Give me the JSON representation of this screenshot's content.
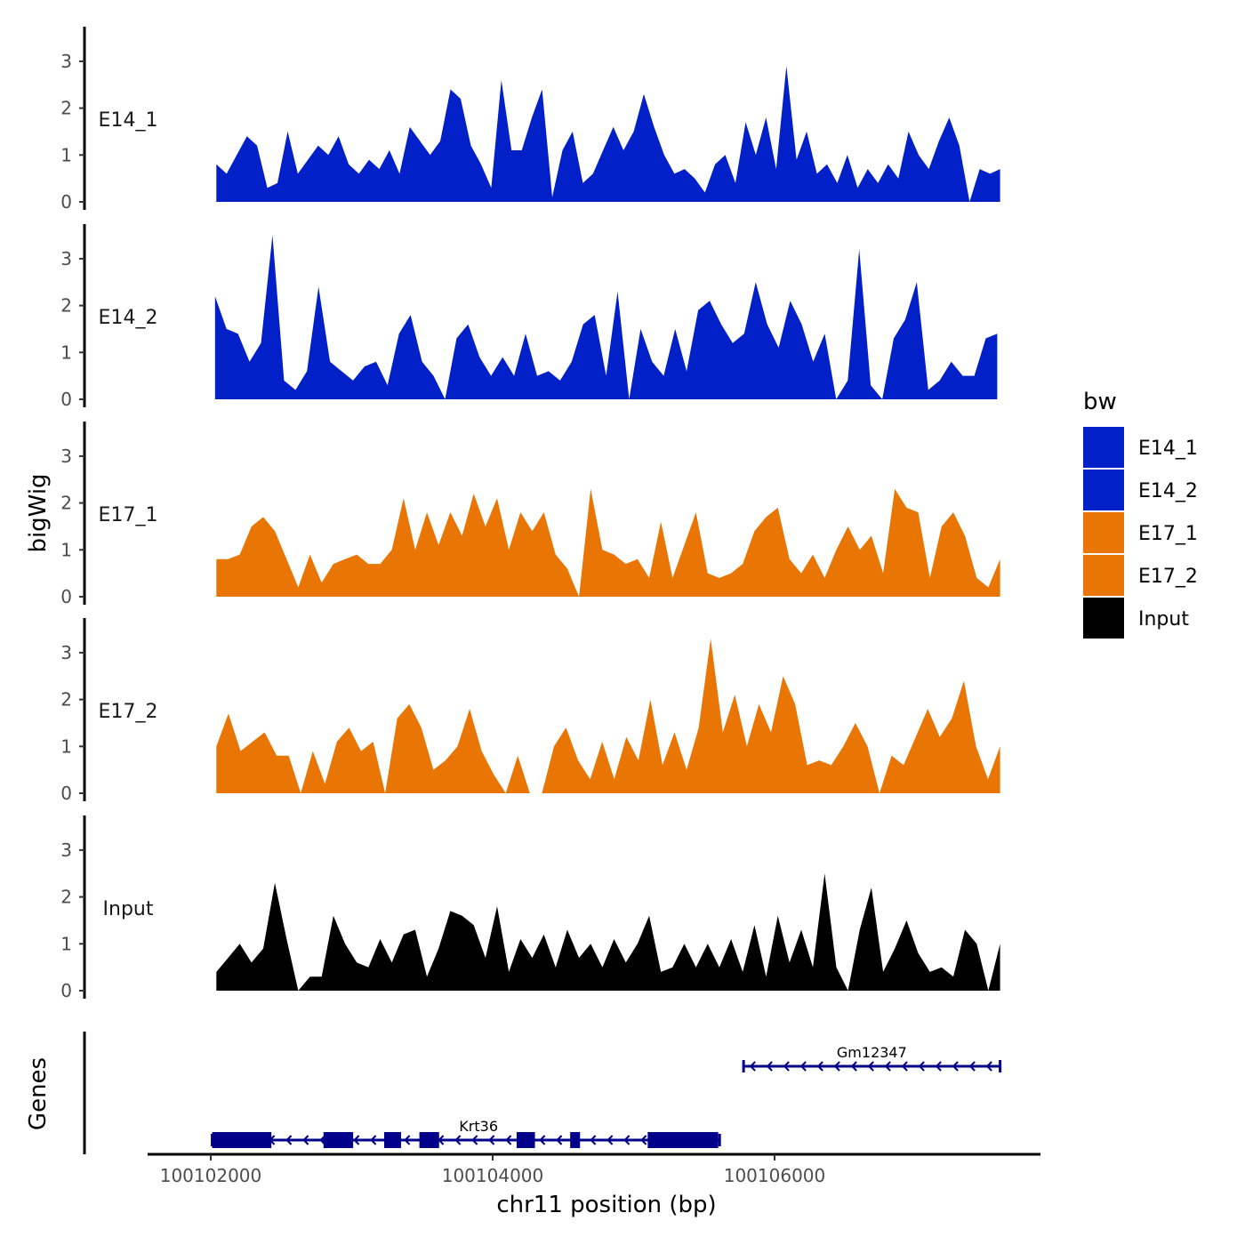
{
  "chart_data": {
    "type": "area",
    "title": "",
    "ylabel": "bigWig",
    "xlabel": "chr11 position (bp)",
    "genes_label": "Genes",
    "ylim": [
      0,
      3.7
    ],
    "yticks": [
      0,
      1,
      2,
      3
    ],
    "xlim": [
      100101600,
      100107900
    ],
    "xticks": [
      100102000,
      100104000,
      100106000
    ],
    "xtick_labels": [
      "100102000",
      "100104000",
      "100106000"
    ],
    "colors": {
      "E14_1": "#0120C8",
      "E14_2": "#0120C8",
      "E17_1": "#E87504",
      "E17_2": "#E87504",
      "Input": "#000000",
      "gene": "#00008B"
    },
    "legend": {
      "title": "bw",
      "entries": [
        {
          "label": "E14_1",
          "color": "#0120C8"
        },
        {
          "label": "E14_2",
          "color": "#0120C8"
        },
        {
          "label": "E17_1",
          "color": "#E87504"
        },
        {
          "label": "E17_2",
          "color": "#E87504"
        },
        {
          "label": "Input",
          "color": "#000000"
        }
      ]
    },
    "tracks": [
      {
        "name": "E14_1",
        "x_start": 100102040,
        "x_end": 100107600,
        "values": [
          0.8,
          0.6,
          1.0,
          1.4,
          1.2,
          0.3,
          0.4,
          1.5,
          0.6,
          0.9,
          1.2,
          1.0,
          1.4,
          0.8,
          0.6,
          0.9,
          0.7,
          1.1,
          0.6,
          1.6,
          1.3,
          1.0,
          1.3,
          2.4,
          2.2,
          1.2,
          0.8,
          0.3,
          2.6,
          1.1,
          1.1,
          1.8,
          2.4,
          0.1,
          1.1,
          1.5,
          0.4,
          0.6,
          1.1,
          1.6,
          1.1,
          1.5,
          2.3,
          1.6,
          1.0,
          0.6,
          0.7,
          0.5,
          0.2,
          0.8,
          1.0,
          0.4,
          1.7,
          1.0,
          1.8,
          0.7,
          2.9,
          0.9,
          1.5,
          0.6,
          0.8,
          0.4,
          1.0,
          0.3,
          0.7,
          0.4,
          0.8,
          0.5,
          1.5,
          1.0,
          0.7,
          1.3,
          1.8,
          1.2,
          0.0,
          0.7,
          0.6,
          0.7
        ]
      },
      {
        "name": "E14_2",
        "x_start": 100102030,
        "x_end": 100107580,
        "values": [
          2.2,
          1.5,
          1.4,
          0.8,
          1.2,
          3.5,
          0.4,
          0.2,
          0.6,
          2.4,
          0.8,
          0.6,
          0.4,
          0.7,
          0.8,
          0.3,
          1.4,
          1.8,
          0.8,
          0.5,
          0.0,
          1.3,
          1.6,
          0.9,
          0.5,
          0.9,
          0.5,
          1.4,
          0.5,
          0.6,
          0.4,
          0.8,
          1.6,
          1.8,
          0.5,
          2.3,
          0.0,
          1.5,
          0.8,
          0.5,
          1.5,
          0.6,
          1.9,
          2.1,
          1.6,
          1.2,
          1.4,
          2.5,
          1.6,
          1.1,
          2.1,
          1.6,
          0.8,
          1.4,
          0.0,
          0.4,
          3.2,
          0.3,
          0.0,
          1.3,
          1.7,
          2.5,
          0.2,
          0.4,
          0.8,
          0.5,
          0.5,
          1.3,
          1.4
        ]
      },
      {
        "name": "E17_1",
        "x_start": 100102040,
        "x_end": 100107600,
        "values": [
          0.8,
          0.8,
          0.9,
          1.5,
          1.7,
          1.4,
          0.8,
          0.2,
          0.9,
          0.3,
          0.7,
          0.8,
          0.9,
          0.7,
          0.7,
          1.0,
          2.1,
          1.0,
          1.8,
          1.1,
          1.8,
          1.3,
          2.2,
          1.5,
          2.1,
          1.0,
          1.8,
          1.4,
          1.8,
          0.9,
          0.6,
          0.0,
          2.3,
          1.0,
          0.9,
          0.7,
          0.8,
          0.4,
          1.6,
          0.4,
          1.1,
          1.8,
          0.5,
          0.4,
          0.5,
          0.7,
          1.4,
          1.7,
          1.9,
          0.8,
          0.5,
          0.9,
          0.4,
          1.0,
          1.5,
          1.0,
          1.3,
          0.5,
          2.3,
          1.9,
          1.8,
          0.4,
          1.5,
          1.8,
          1.3,
          0.4,
          0.2,
          0.8
        ]
      },
      {
        "name": "E17_2",
        "x_start": 100102040,
        "x_end": 100107600,
        "values": [
          1.0,
          1.7,
          0.9,
          1.1,
          1.3,
          0.8,
          0.8,
          0.0,
          0.9,
          0.2,
          1.1,
          1.4,
          0.9,
          1.1,
          0.0,
          1.6,
          1.9,
          1.4,
          0.5,
          0.7,
          1.0,
          1.8,
          0.9,
          0.4,
          0.0,
          0.8,
          0.0,
          0.0,
          1.0,
          1.4,
          0.7,
          0.3,
          1.1,
          0.3,
          1.2,
          0.7,
          2.0,
          0.6,
          1.3,
          0.5,
          1.4,
          3.3,
          1.3,
          2.1,
          1.0,
          1.9,
          1.3,
          2.5,
          1.9,
          0.6,
          0.7,
          0.6,
          1.0,
          1.5,
          1.0,
          0.0,
          0.8,
          0.6,
          1.2,
          1.8,
          1.2,
          1.6,
          2.4,
          1.0,
          0.3,
          1.0
        ]
      },
      {
        "name": "Input",
        "x_start": 100102040,
        "x_end": 100107600,
        "values": [
          0.4,
          0.7,
          1.0,
          0.6,
          0.9,
          2.3,
          1.1,
          0.0,
          0.3,
          0.3,
          1.6,
          1.0,
          0.6,
          0.5,
          1.1,
          0.6,
          1.2,
          1.3,
          0.3,
          0.9,
          1.7,
          1.6,
          1.4,
          0.7,
          1.8,
          0.4,
          1.1,
          0.7,
          1.2,
          0.5,
          1.3,
          0.7,
          1.0,
          0.5,
          1.1,
          0.6,
          1.0,
          1.6,
          0.4,
          0.5,
          1.0,
          0.5,
          1.0,
          0.5,
          1.1,
          0.4,
          1.4,
          0.3,
          1.6,
          0.6,
          1.3,
          0.5,
          2.5,
          0.5,
          0.0,
          1.3,
          2.2,
          0.4,
          0.9,
          1.5,
          0.8,
          0.4,
          0.5,
          0.3,
          1.3,
          1.0,
          0.0,
          1.0
        ]
      }
    ],
    "genes": [
      {
        "name": "Krt36",
        "start": 100102010,
        "end": 100105610,
        "strand": "-",
        "exons": [
          [
            100102010,
            100102430
          ],
          [
            100102800,
            100103010
          ],
          [
            100103230,
            100103350
          ],
          [
            100103480,
            100103620
          ],
          [
            100104170,
            100104300
          ],
          [
            100104550,
            100104620
          ],
          [
            100105100,
            100105600
          ]
        ]
      },
      {
        "name": "Gm12347",
        "start": 100105780,
        "end": 100107600,
        "strand": "-",
        "exons": []
      }
    ]
  }
}
